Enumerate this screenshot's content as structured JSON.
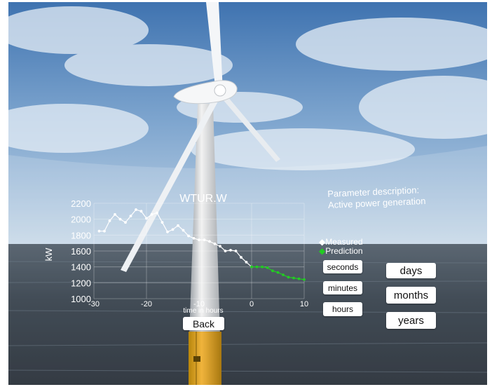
{
  "chart_data": {
    "type": "line",
    "title": "WTUR.W",
    "xlabel": "time in hours",
    "ylabel": "kW",
    "xlim": [
      -30,
      10
    ],
    "ylim": [
      1000,
      2200
    ],
    "x_ticks": [
      "-30",
      "-20",
      "-10",
      "0",
      "10"
    ],
    "y_ticks": [
      "2200",
      "2000",
      "1800",
      "1600",
      "1400",
      "1200",
      "1000"
    ],
    "grid": true,
    "legend_position": "right",
    "series": [
      {
        "name": "Measured",
        "color": "#ffffff",
        "x": [
          -29,
          -28,
          -27,
          -26,
          -25,
          -24,
          -23,
          -22,
          -21,
          -20,
          -19,
          -18,
          -17,
          -16,
          -15,
          -14,
          -13,
          -12,
          -11,
          -10,
          -9,
          -8,
          -7,
          -6,
          -5,
          -4,
          -3,
          -2,
          -1,
          0
        ],
        "y": [
          1850,
          1850,
          1980,
          2060,
          2000,
          1960,
          2040,
          2120,
          2100,
          2010,
          2060,
          2080,
          1960,
          1840,
          1870,
          1920,
          1860,
          1790,
          1760,
          1740,
          1740,
          1720,
          1690,
          1660,
          1600,
          1610,
          1600,
          1520,
          1460,
          1400
        ]
      },
      {
        "name": "Prediction",
        "color": "#22cc22",
        "x": [
          0,
          1,
          2,
          3,
          4,
          5,
          6,
          7,
          8,
          9,
          10
        ],
        "y": [
          1400,
          1400,
          1400,
          1390,
          1350,
          1330,
          1300,
          1270,
          1260,
          1250,
          1240
        ]
      }
    ]
  },
  "description": {
    "line1": "Parameter description:",
    "line2": "Active power generation"
  },
  "legend": {
    "measured": "Measured",
    "prediction": "Prediction"
  },
  "buttons": {
    "seconds": "seconds",
    "minutes": "minutes",
    "hours": "hours",
    "days": "days",
    "months": "months",
    "years": "years",
    "back": "Back"
  }
}
